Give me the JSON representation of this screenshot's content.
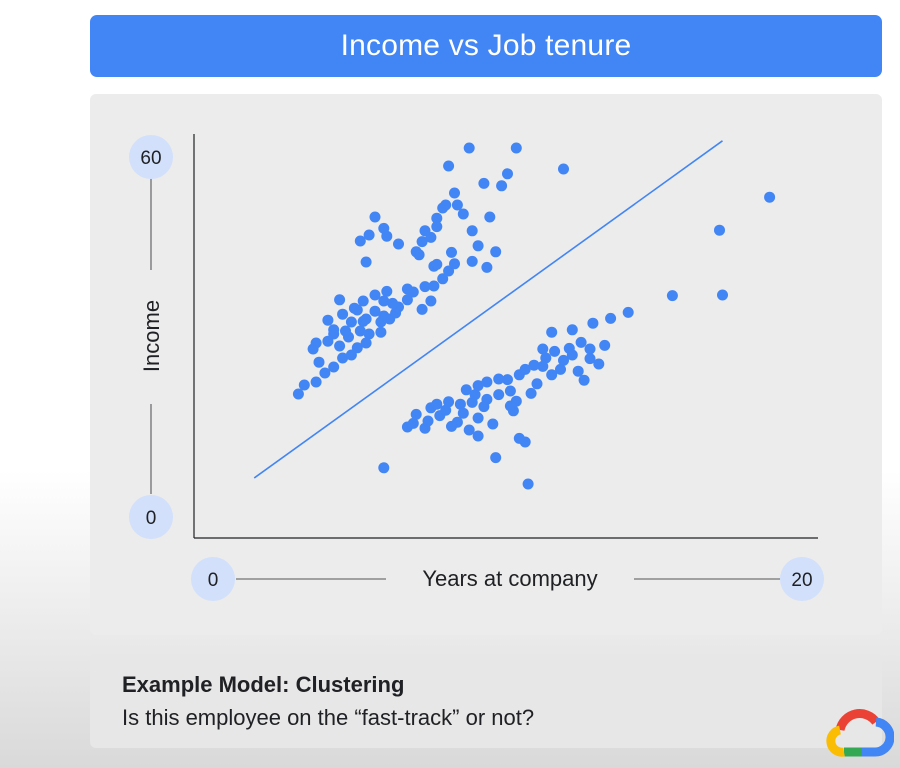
{
  "header": {
    "title": "Income vs Job tenure"
  },
  "footer": {
    "title": "Example Model: Clustering",
    "subtitle": "Is this employee on the “fast-track” or not?"
  },
  "logo": {
    "icon": "google-cloud-logo-icon",
    "colors": [
      "#ea4335",
      "#fbbc04",
      "#34a853",
      "#4285f4"
    ]
  },
  "chart_data": {
    "type": "scatter",
    "title": "Income vs Job tenure",
    "xlabel": "Years at company",
    "ylabel": "Income",
    "xlim": [
      0,
      20
    ],
    "ylim": [
      0,
      60
    ],
    "x_ticks": [
      "0",
      "20"
    ],
    "y_ticks": [
      "0",
      "60"
    ],
    "grid": false,
    "point_color": "#4285f4",
    "trend_line": {
      "start": [
        1.4,
        6.5
      ],
      "end": [
        17.3,
        62.7
      ]
    },
    "points": [
      [
        2.9,
        20.5
      ],
      [
        3.1,
        22.0
      ],
      [
        3.5,
        22.5
      ],
      [
        3.8,
        24.0
      ],
      [
        4.1,
        25.0
      ],
      [
        4.4,
        26.5
      ],
      [
        3.6,
        25.8
      ],
      [
        3.4,
        28.0
      ],
      [
        3.5,
        29.0
      ],
      [
        3.9,
        29.3
      ],
      [
        4.3,
        28.5
      ],
      [
        4.7,
        27.0
      ],
      [
        4.9,
        28.2
      ],
      [
        4.6,
        30.0
      ],
      [
        5.0,
        31.0
      ],
      [
        5.2,
        29.0
      ],
      [
        3.9,
        32.8
      ],
      [
        4.4,
        33.8
      ],
      [
        4.7,
        32.5
      ],
      [
        4.5,
        31.0
      ],
      [
        4.1,
        30.5
      ],
      [
        5.1,
        32.6
      ],
      [
        5.5,
        34.3
      ],
      [
        5.3,
        30.5
      ],
      [
        5.7,
        32.5
      ],
      [
        5.8,
        33.5
      ],
      [
        5.2,
        33.0
      ],
      [
        4.9,
        34.5
      ],
      [
        5.1,
        36.0
      ],
      [
        4.3,
        36.2
      ],
      [
        4.1,
        31.2
      ],
      [
        4.8,
        34.8
      ],
      [
        5.7,
        30.8
      ],
      [
        6.0,
        33.0
      ],
      [
        6.2,
        34.0
      ],
      [
        6.3,
        35.0
      ],
      [
        5.8,
        36.0
      ],
      [
        5.9,
        37.6
      ],
      [
        6.1,
        35.6
      ],
      [
        5.5,
        37.0
      ],
      [
        6.6,
        36.2
      ],
      [
        7.1,
        34.6
      ],
      [
        7.4,
        36.0
      ],
      [
        6.8,
        37.5
      ],
      [
        6.6,
        38.0
      ],
      [
        7.2,
        38.4
      ],
      [
        7.5,
        38.5
      ],
      [
        7.8,
        39.7
      ],
      [
        7.5,
        41.8
      ],
      [
        8.0,
        41.0
      ],
      [
        8.2,
        42.2
      ],
      [
        8.8,
        42.6
      ],
      [
        9.3,
        41.6
      ],
      [
        9.0,
        45.2
      ],
      [
        8.8,
        47.7
      ],
      [
        9.6,
        44.2
      ],
      [
        8.1,
        44.1
      ],
      [
        7.6,
        42.1
      ],
      [
        7.0,
        43.7
      ],
      [
        7.4,
        46.6
      ],
      [
        7.6,
        48.4
      ],
      [
        7.2,
        47.7
      ],
      [
        7.1,
        45.9
      ],
      [
        6.9,
        44.2
      ],
      [
        6.3,
        45.5
      ],
      [
        5.9,
        46.8
      ],
      [
        5.3,
        47.0
      ],
      [
        5.8,
        48.1
      ],
      [
        5.5,
        50.0
      ],
      [
        5.2,
        42.5
      ],
      [
        5.0,
        46.0
      ],
      [
        7.8,
        51.5
      ],
      [
        7.6,
        49.8
      ],
      [
        7.9,
        52.0
      ],
      [
        8.5,
        50.5
      ],
      [
        8.3,
        52.0
      ],
      [
        9.4,
        50.0
      ],
      [
        8.2,
        54.0
      ],
      [
        9.2,
        55.6
      ],
      [
        9.8,
        55.2
      ],
      [
        10.0,
        57.2
      ],
      [
        10.3,
        61.5
      ],
      [
        8.0,
        58.5
      ],
      [
        8.7,
        61.5
      ],
      [
        11.9,
        58.0
      ],
      [
        5.8,
        8.2
      ],
      [
        6.6,
        15.0
      ],
      [
        6.8,
        15.6
      ],
      [
        6.9,
        17.1
      ],
      [
        7.2,
        14.8
      ],
      [
        7.3,
        16.0
      ],
      [
        7.4,
        18.2
      ],
      [
        7.7,
        16.9
      ],
      [
        7.6,
        18.8
      ],
      [
        7.9,
        17.8
      ],
      [
        8.0,
        19.2
      ],
      [
        8.4,
        18.8
      ],
      [
        8.5,
        17.3
      ],
      [
        8.3,
        15.8
      ],
      [
        8.8,
        19.1
      ],
      [
        8.6,
        21.2
      ],
      [
        9.0,
        16.5
      ],
      [
        9.3,
        19.6
      ],
      [
        9.2,
        18.4
      ],
      [
        8.9,
        20.4
      ],
      [
        9.0,
        21.9
      ],
      [
        9.7,
        20.4
      ],
      [
        9.3,
        22.5
      ],
      [
        9.7,
        23.0
      ],
      [
        10.0,
        22.9
      ],
      [
        10.4,
        23.7
      ],
      [
        10.1,
        21.0
      ],
      [
        10.3,
        19.3
      ],
      [
        10.8,
        20.6
      ],
      [
        11.0,
        22.2
      ],
      [
        10.6,
        24.6
      ],
      [
        11.2,
        25.1
      ],
      [
        11.3,
        26.5
      ],
      [
        11.6,
        27.6
      ],
      [
        12.1,
        28.1
      ],
      [
        12.5,
        29.1
      ],
      [
        12.8,
        28.0
      ],
      [
        12.8,
        26.4
      ],
      [
        11.5,
        23.7
      ],
      [
        11.8,
        24.6
      ],
      [
        12.2,
        27.0
      ],
      [
        11.2,
        28.0
      ],
      [
        12.4,
        24.3
      ],
      [
        12.2,
        31.2
      ],
      [
        12.9,
        32.3
      ],
      [
        13.5,
        33.1
      ],
      [
        13.3,
        28.6
      ],
      [
        13.1,
        25.5
      ],
      [
        12.6,
        22.8
      ],
      [
        11.9,
        26.1
      ],
      [
        11.5,
        30.8
      ],
      [
        10.9,
        25.3
      ],
      [
        10.2,
        17.7
      ],
      [
        9.5,
        15.5
      ],
      [
        8.7,
        14.5
      ],
      [
        8.1,
        15.1
      ],
      [
        9.0,
        13.5
      ],
      [
        9.6,
        9.9
      ],
      [
        10.6,
        12.5
      ],
      [
        10.4,
        13.1
      ],
      [
        10.7,
        5.5
      ],
      [
        10.1,
        18.5
      ],
      [
        14.1,
        34.1
      ],
      [
        15.6,
        36.9
      ],
      [
        17.2,
        47.8
      ],
      [
        17.3,
        37.0
      ],
      [
        18.9,
        53.3
      ]
    ]
  }
}
